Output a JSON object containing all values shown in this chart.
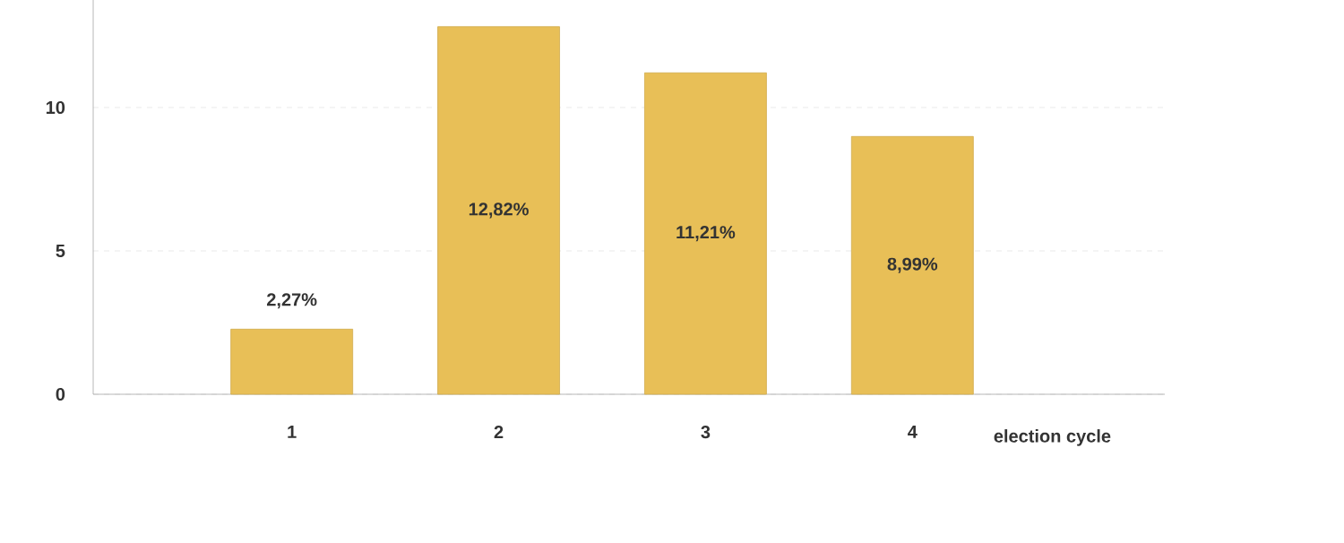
{
  "chart_data": {
    "type": "bar",
    "xlabel": "election cycle",
    "categories": [
      "1",
      "2",
      "3",
      "4"
    ],
    "values": [
      2.27,
      12.82,
      11.21,
      8.99
    ],
    "value_labels": [
      "2,27%",
      "12,82%",
      "11,21%",
      "8,99%"
    ],
    "color": "#e8bf57",
    "ylim": [
      0,
      13.75
    ],
    "yticks": [
      0,
      5,
      10
    ],
    "grid": "y"
  }
}
